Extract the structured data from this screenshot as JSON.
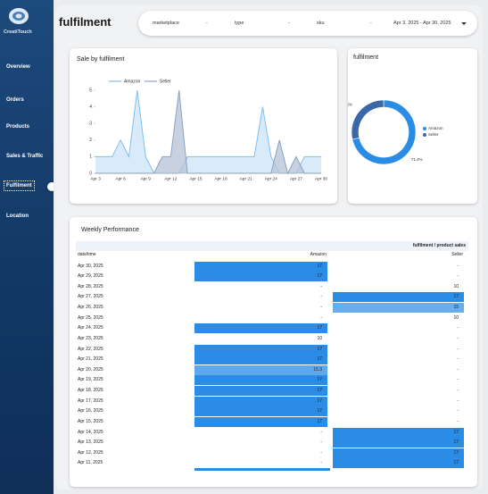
{
  "sidebar": {
    "logo": "CreatiTouch",
    "nav": [
      "Overview",
      "Orders",
      "Products",
      "Sales & Traffic",
      "Fulfilment",
      "Location"
    ],
    "active": 4
  },
  "header": {
    "title": "fulfilment"
  },
  "filters": [
    {
      "label": "marketplace",
      "value": "-"
    },
    {
      "label": "type",
      "value": "-"
    },
    {
      "label": "sku",
      "value": "-"
    }
  ],
  "date_range": "Apr 3, 2025 - Apr 30, 2025",
  "chart_data": [
    {
      "type": "area",
      "title": "Sale by fulfilment",
      "categories": [
        "Apr 3",
        null,
        null,
        "Apr 6",
        null,
        null,
        "Apr 9",
        null,
        null,
        "Apr 12",
        null,
        null,
        "Apr 15",
        null,
        null,
        "Apr 18",
        null,
        null,
        "Apr 21",
        null,
        null,
        "Apr 24",
        null,
        null,
        "Apr 27",
        null,
        null,
        "Apr 30"
      ],
      "series": [
        {
          "name": "Amazon",
          "color": "#7fbff0",
          "fill": "#cfe6fa",
          "values": [
            1,
            1,
            1,
            2,
            1,
            5,
            1,
            0,
            0,
            0,
            0,
            1,
            1,
            1,
            1,
            1,
            1,
            1,
            1,
            1,
            4,
            1,
            0,
            0,
            0,
            1,
            1,
            1
          ]
        },
        {
          "name": "Seller",
          "color": "#8aa2c4",
          "fill": "#b9c5d8",
          "values": [
            0,
            0,
            0,
            0,
            0,
            0,
            0,
            0,
            1,
            1,
            5,
            0,
            0,
            0,
            0,
            0,
            0,
            0,
            0,
            0,
            0,
            0,
            2,
            0,
            1,
            0,
            0,
            0
          ]
        }
      ],
      "ylim": [
        0,
        5
      ],
      "yticks": [
        0,
        1,
        2,
        3,
        4,
        5
      ],
      "grid": false,
      "legend": "top"
    },
    {
      "type": "pie",
      "title": "fulfilment",
      "categories": [
        "Amazon",
        "Seller"
      ],
      "values": [
        71.4,
        28.6
      ],
      "value_labels": [
        "71.4%",
        "28.6%"
      ],
      "colors": [
        "#2b8ce6",
        "#3a67a8"
      ],
      "legend": "right"
    }
  ],
  "table": {
    "title": "Weekly Performance",
    "group_header": "fulfilment / product sales",
    "columns": [
      "date/time",
      "Amazon",
      "Seller"
    ],
    "heat_color": "#2b8ce6",
    "rows": [
      [
        "Apr 30, 2025",
        17,
        "-"
      ],
      [
        "Apr 29, 2025",
        17,
        "-"
      ],
      [
        "Apr 28, 2025",
        "-",
        10
      ],
      [
        "Apr 27, 2025",
        "-",
        17
      ],
      [
        "Apr 26, 2025",
        "-",
        15
      ],
      [
        "Apr 25, 2025",
        "-",
        10
      ],
      [
        "Apr 24, 2025",
        17,
        "-"
      ],
      [
        "Apr 23, 2025",
        10,
        "-"
      ],
      [
        "Apr 22, 2025",
        17,
        "-"
      ],
      [
        "Apr 21, 2025",
        17,
        "-"
      ],
      [
        "Apr 20, 2025",
        15.3,
        "-"
      ],
      [
        "Apr 19, 2025",
        17,
        "-"
      ],
      [
        "Apr 18, 2025",
        17,
        "-"
      ],
      [
        "Apr 17, 2025",
        17,
        "-"
      ],
      [
        "Apr 16, 2025",
        17,
        "-"
      ],
      [
        "Apr 15, 2025",
        17,
        "-"
      ],
      [
        "Apr 14, 2025",
        "-",
        17
      ],
      [
        "Apr 13, 2025",
        "-",
        17
      ],
      [
        "Apr 12, 2025",
        "-",
        17
      ],
      [
        "Apr 11, 2025",
        "-",
        17
      ]
    ]
  }
}
